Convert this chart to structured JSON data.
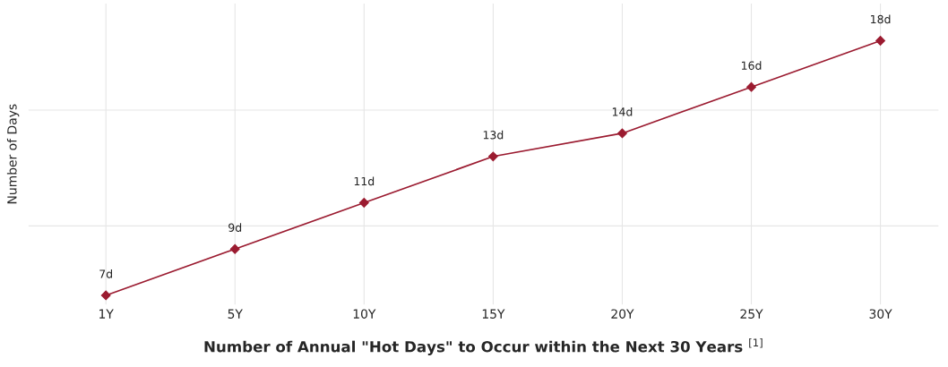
{
  "chart_data": {
    "type": "line",
    "xlabel": "Number of Annual \"Hot Days\" to Occur within the Next 30 Years $^{[1]}$",
    "ylabel": "Number of Days",
    "categories": [
      "1Y",
      "5Y",
      "10Y",
      "15Y",
      "20Y",
      "25Y",
      "30Y"
    ],
    "series": [
      {
        "color": "#9b1b30",
        "values": [
          7,
          9,
          11,
          13,
          14,
          16,
          18
        ],
        "value_labels": [
          "7d",
          "9d",
          "11d",
          "13d",
          "14d",
          "16d",
          "18d"
        ]
      }
    ],
    "ylim": [
      6.6,
      19.6
    ],
    "yticks": [
      {
        "value": 10,
        "label": null
      },
      {
        "value": 15,
        "label": null
      }
    ],
    "grid": true,
    "marker": "diamond",
    "line_style": "solid",
    "legend": false
  }
}
